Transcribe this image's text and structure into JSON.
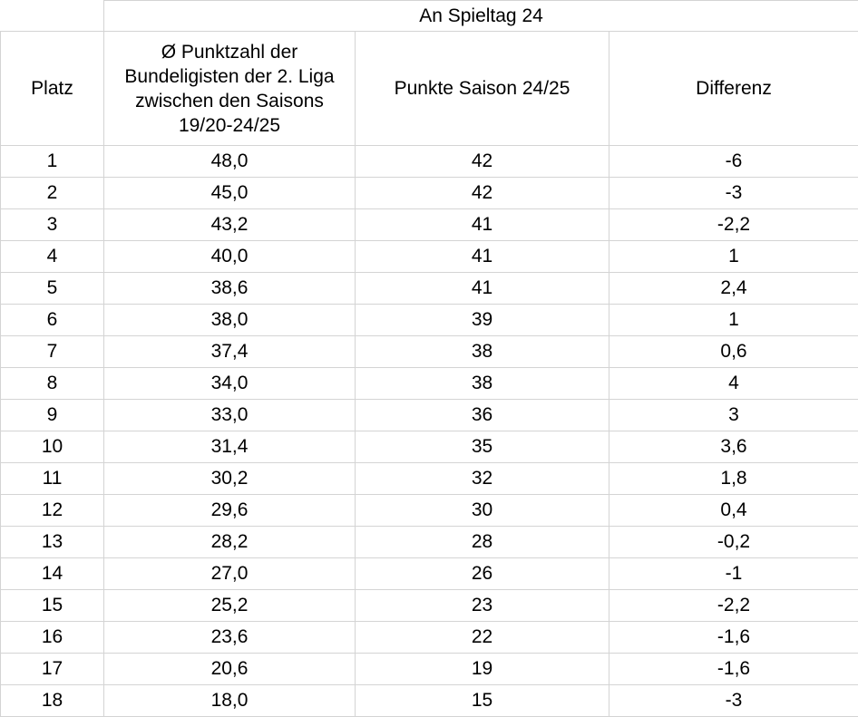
{
  "table": {
    "group_header": "An Spieltag 24",
    "headers": {
      "platz": "Platz",
      "avg": "Ø Punktzahl der Bundeligisten der 2. Liga zwischen den Saisons 19/20-24/25",
      "points": "Punkte Saison 24/25",
      "diff": "Differenz"
    },
    "rows": [
      {
        "platz": "1",
        "avg": "48,0",
        "points": "42",
        "diff": "-6"
      },
      {
        "platz": "2",
        "avg": "45,0",
        "points": "42",
        "diff": "-3"
      },
      {
        "platz": "3",
        "avg": "43,2",
        "points": "41",
        "diff": "-2,2"
      },
      {
        "platz": "4",
        "avg": "40,0",
        "points": "41",
        "diff": "1"
      },
      {
        "platz": "5",
        "avg": "38,6",
        "points": "41",
        "diff": "2,4"
      },
      {
        "platz": "6",
        "avg": "38,0",
        "points": "39",
        "diff": "1"
      },
      {
        "platz": "7",
        "avg": "37,4",
        "points": "38",
        "diff": "0,6"
      },
      {
        "platz": "8",
        "avg": "34,0",
        "points": "38",
        "diff": "4"
      },
      {
        "platz": "9",
        "avg": "33,0",
        "points": "36",
        "diff": "3"
      },
      {
        "platz": "10",
        "avg": "31,4",
        "points": "35",
        "diff": "3,6"
      },
      {
        "platz": "11",
        "avg": "30,2",
        "points": "32",
        "diff": "1,8"
      },
      {
        "platz": "12",
        "avg": "29,6",
        "points": "30",
        "diff": "0,4"
      },
      {
        "platz": "13",
        "avg": "28,2",
        "points": "28",
        "diff": "-0,2"
      },
      {
        "platz": "14",
        "avg": "27,0",
        "points": "26",
        "diff": "-1"
      },
      {
        "platz": "15",
        "avg": "25,2",
        "points": "23",
        "diff": "-2,2"
      },
      {
        "platz": "16",
        "avg": "23,6",
        "points": "22",
        "diff": "-1,6"
      },
      {
        "platz": "17",
        "avg": "20,6",
        "points": "19",
        "diff": "-1,6"
      },
      {
        "platz": "18",
        "avg": "18,0",
        "points": "15",
        "diff": "-3"
      }
    ]
  }
}
